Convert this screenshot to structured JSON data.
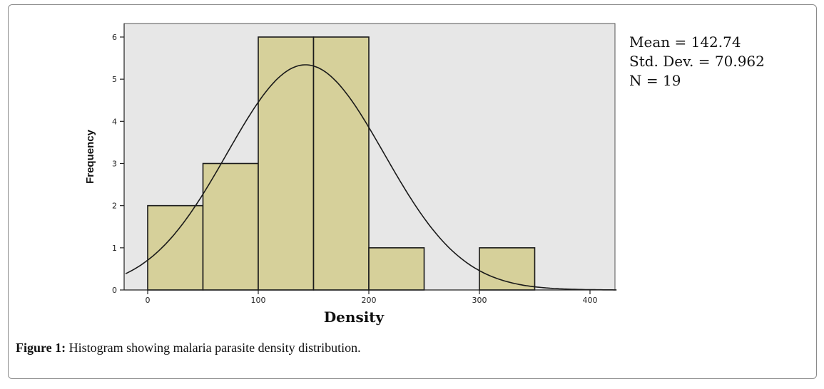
{
  "figure": {
    "caption_label": "Figure 1:",
    "caption_text": " Histogram showing malaria parasite density distribution."
  },
  "stats": {
    "mean": "Mean = 142.74",
    "std": "Std. Dev. = 70.962",
    "n": "N = 19"
  },
  "chart_data": {
    "type": "bar",
    "subtype": "histogram",
    "xlabel": "Density",
    "ylabel": "Frequency",
    "xlim": [
      -20,
      425
    ],
    "ylim": [
      0,
      6.3
    ],
    "x_ticks": [
      0,
      100,
      200,
      300,
      400
    ],
    "y_ticks": [
      0,
      1,
      2,
      3,
      4,
      5,
      6
    ],
    "bins": [
      {
        "start": 0,
        "end": 50,
        "value": 2
      },
      {
        "start": 50,
        "end": 100,
        "value": 3
      },
      {
        "start": 100,
        "end": 150,
        "value": 6
      },
      {
        "start": 150,
        "end": 200,
        "value": 6
      },
      {
        "start": 200,
        "end": 250,
        "value": 1
      },
      {
        "start": 250,
        "end": 300,
        "value": 0
      },
      {
        "start": 300,
        "end": 350,
        "value": 1
      }
    ],
    "normal_curve": {
      "mean": 142.74,
      "std": 70.962,
      "n": 19,
      "bin_width": 50
    },
    "grid": false,
    "colors": {
      "plot_bg": "#e7e7e7",
      "bar_fill": "#d6d09a",
      "bar_stroke": "#1a1a1a",
      "curve": "#1a1a1a"
    }
  }
}
